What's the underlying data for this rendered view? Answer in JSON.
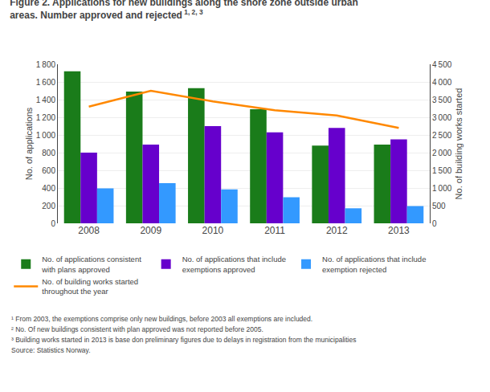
{
  "chart_data": {
    "type": "bar",
    "title": "Figure 2. Applications for new buildings along the shore zone outside urban\nareas. Number approved and rejected",
    "annotations": [
      "1, 2, 3",
      "¹ From 2003, the exemptions comprise only new buildings, before 2003 all exemptions are included.",
      "² No. Of new buildings consistent with plan approved was not reported before 2005.",
      "³ Building works started in 2013 is base don preliminary figures due to delays in registration from the municipalities",
      "Source: Statistics Norway."
    ],
    "ylabel": "No. of applications",
    "y2label": "No. of building works started",
    "categories": [
      2008,
      2009,
      2010,
      2011,
      2012,
      2013
    ],
    "series": [
      {
        "name": "No. of applications consistent\nwith plans approved",
        "color": "#1a7c1a",
        "type": "bar",
        "values": [
          1720,
          1490,
          1530,
          1290,
          880,
          890
        ]
      },
      {
        "name": "No. of applications that include\nexemptions approved",
        "color": "#6600cc",
        "type": "bar",
        "values": [
          800,
          890,
          1100,
          1030,
          1080,
          950
        ]
      },
      {
        "name": "No. of applications that include\nexemption rejected",
        "color": "#3399ff",
        "type": "bar",
        "values": [
          395,
          455,
          385,
          295,
          170,
          195
        ]
      },
      {
        "name": "No. of building works started\nthroughout the year",
        "color": "#ff8800",
        "type": "line",
        "axis": "y2",
        "values": [
          3300,
          3750,
          3450,
          3200,
          3050,
          2700
        ]
      }
    ],
    "ylim": [
      0,
      1800
    ],
    "yticks": [
      0,
      200,
      400,
      600,
      800,
      {
        "value": 1000,
        "label": "1 000"
      },
      {
        "value": 1200,
        "label": "1 200"
      },
      {
        "value": 1400,
        "label": "1 400"
      },
      {
        "value": 1600,
        "label": "1 600"
      },
      {
        "value": 1800,
        "label": "1 800"
      }
    ],
    "y2lim": [
      0,
      4500
    ],
    "y2ticks": [
      0,
      500,
      {
        "value": 1000,
        "label": "1 000"
      },
      {
        "value": 1500,
        "label": "1 500"
      },
      {
        "value": 2000,
        "label": "2 000"
      },
      {
        "value": 2500,
        "label": "2 500"
      },
      {
        "value": 3000,
        "label": "3 000"
      },
      {
        "value": 3500,
        "label": "3 500"
      },
      {
        "value": 4000,
        "label": "4 000"
      },
      {
        "value": 4500,
        "label": "4 500"
      }
    ],
    "grid": true,
    "legend": "bottom"
  }
}
